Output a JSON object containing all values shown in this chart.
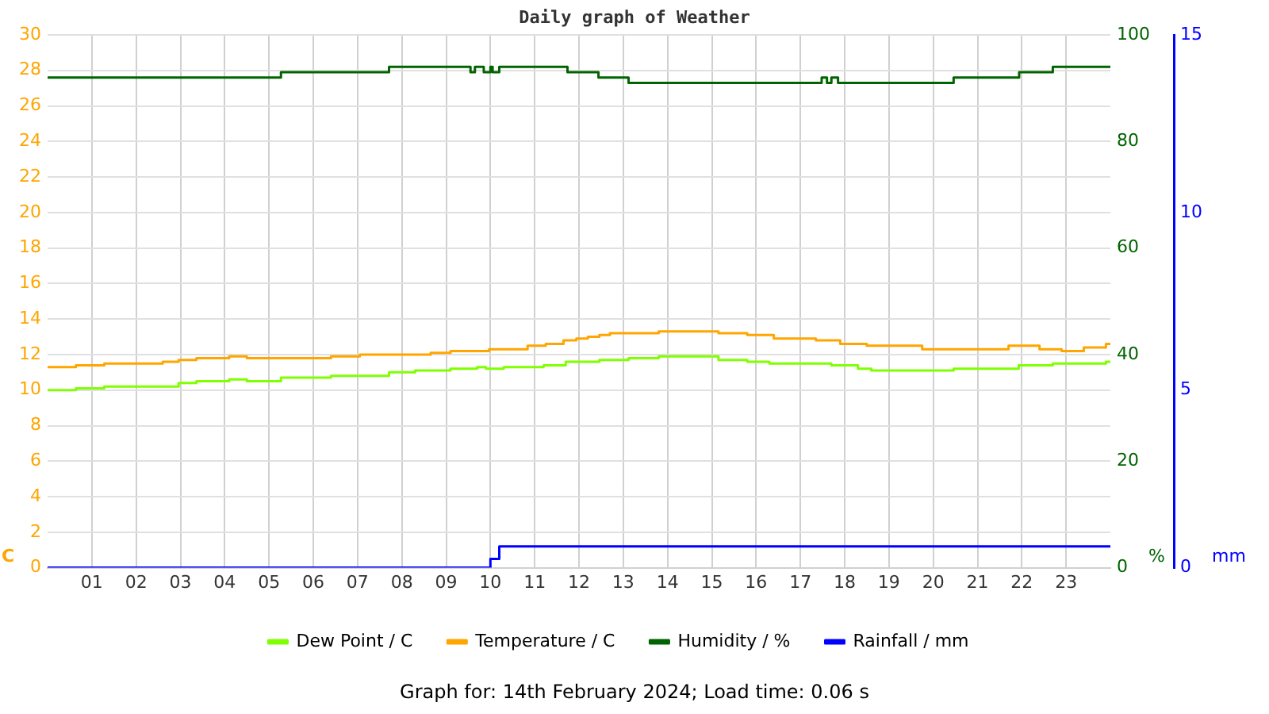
{
  "chart_data": {
    "type": "step",
    "title": "Daily graph of Weather",
    "ylabel": "C",
    "y2label": "%",
    "y3label": "mm",
    "annotations": [
      "Graph for: 14th February 2024; Load time: 0.06 s"
    ],
    "xlim": [
      0,
      24
    ],
    "xticks": [
      {
        "value": 1,
        "label": "01"
      },
      {
        "value": 2,
        "label": "02"
      },
      {
        "value": 3,
        "label": "03"
      },
      {
        "value": 4,
        "label": "04"
      },
      {
        "value": 5,
        "label": "05"
      },
      {
        "value": 6,
        "label": "06"
      },
      {
        "value": 7,
        "label": "07"
      },
      {
        "value": 8,
        "label": "08"
      },
      {
        "value": 9,
        "label": "09"
      },
      {
        "value": 10,
        "label": "10"
      },
      {
        "value": 11,
        "label": "11"
      },
      {
        "value": 12,
        "label": "12"
      },
      {
        "value": 13,
        "label": "13"
      },
      {
        "value": 14,
        "label": "14"
      },
      {
        "value": 15,
        "label": "15"
      },
      {
        "value": 16,
        "label": "16"
      },
      {
        "value": 17,
        "label": "17"
      },
      {
        "value": 18,
        "label": "18"
      },
      {
        "value": 19,
        "label": "19"
      },
      {
        "value": 20,
        "label": "20"
      },
      {
        "value": 21,
        "label": "21"
      },
      {
        "value": 22,
        "label": "22"
      },
      {
        "value": 23,
        "label": "23"
      }
    ],
    "ylim": [
      0,
      30
    ],
    "yticks": [
      0,
      2,
      4,
      6,
      8,
      10,
      12,
      14,
      16,
      18,
      20,
      22,
      24,
      26,
      28,
      30
    ],
    "y2lim": [
      0,
      100
    ],
    "y2ticks": [
      0,
      20,
      40,
      60,
      80,
      100
    ],
    "y3lim": [
      0,
      15
    ],
    "y3ticks": [
      0,
      5,
      10,
      15
    ],
    "grid": true,
    "legend": "bottom",
    "series": [
      {
        "name": "Dew Point / C",
        "color": "#80ff00",
        "x": [
          0,
          0.64,
          1.28,
          2.96,
          3.36,
          4.1,
          4.5,
          5.27,
          6.4,
          7.71,
          8.3,
          9.1,
          9.5,
          9.7,
          9.9,
          10.3,
          11.2,
          11.7,
          12.46,
          13.12,
          13.8,
          15.15,
          15.8,
          16.3,
          17.7,
          18.3,
          18.6,
          20.46,
          21.93,
          22.7,
          23.9,
          24
        ],
        "values": [
          10.0,
          10.1,
          10.2,
          10.4,
          10.5,
          10.6,
          10.5,
          10.7,
          10.8,
          11.0,
          11.1,
          11.2,
          11.2,
          11.3,
          11.2,
          11.3,
          11.4,
          11.6,
          11.7,
          11.8,
          11.9,
          11.7,
          11.6,
          11.5,
          11.4,
          11.2,
          11.1,
          11.2,
          11.4,
          11.5,
          11.6,
          11.6
        ]
      },
      {
        "name": "Temperature / C",
        "color": "#ffa500",
        "x": [
          0,
          0.64,
          1.28,
          2.6,
          2.96,
          3.36,
          4.1,
          4.5,
          6.4,
          7.05,
          8.65,
          9.1,
          9.97,
          10.84,
          11.25,
          11.65,
          11.94,
          12.2,
          12.46,
          12.7,
          13.12,
          13.8,
          15.15,
          15.8,
          16.4,
          17.35,
          17.9,
          18.5,
          19.75,
          21.7,
          22.4,
          22.9,
          23.4,
          23.9,
          24
        ],
        "values": [
          11.3,
          11.4,
          11.5,
          11.6,
          11.7,
          11.8,
          11.9,
          11.8,
          11.9,
          12.0,
          12.1,
          12.2,
          12.3,
          12.5,
          12.6,
          12.8,
          12.9,
          13.0,
          13.1,
          13.2,
          13.2,
          13.3,
          13.2,
          13.1,
          12.9,
          12.8,
          12.6,
          12.5,
          12.3,
          12.5,
          12.3,
          12.2,
          12.4,
          12.6,
          12.6
        ]
      },
      {
        "name": "Humidity / %",
        "color": "#006400",
        "axis": "y2",
        "x": [
          0,
          5.27,
          7.71,
          9.55,
          9.65,
          9.85,
          10.0,
          10.05,
          10.2,
          11.74,
          12.44,
          13.12,
          17.48,
          17.6,
          17.7,
          17.85,
          17.97,
          20.46,
          21.94,
          22.7,
          24
        ],
        "values": [
          92,
          93,
          94,
          93,
          94,
          93,
          94,
          93,
          94,
          93,
          92,
          91,
          92,
          91,
          92,
          91,
          91,
          92,
          93,
          94,
          94
        ]
      },
      {
        "name": "Rainfall / mm",
        "color": "#0000ff",
        "axis": "y3",
        "x": [
          0,
          10.0,
          10.2,
          24
        ],
        "values": [
          0,
          0.25,
          0.6,
          0.6
        ]
      }
    ]
  }
}
